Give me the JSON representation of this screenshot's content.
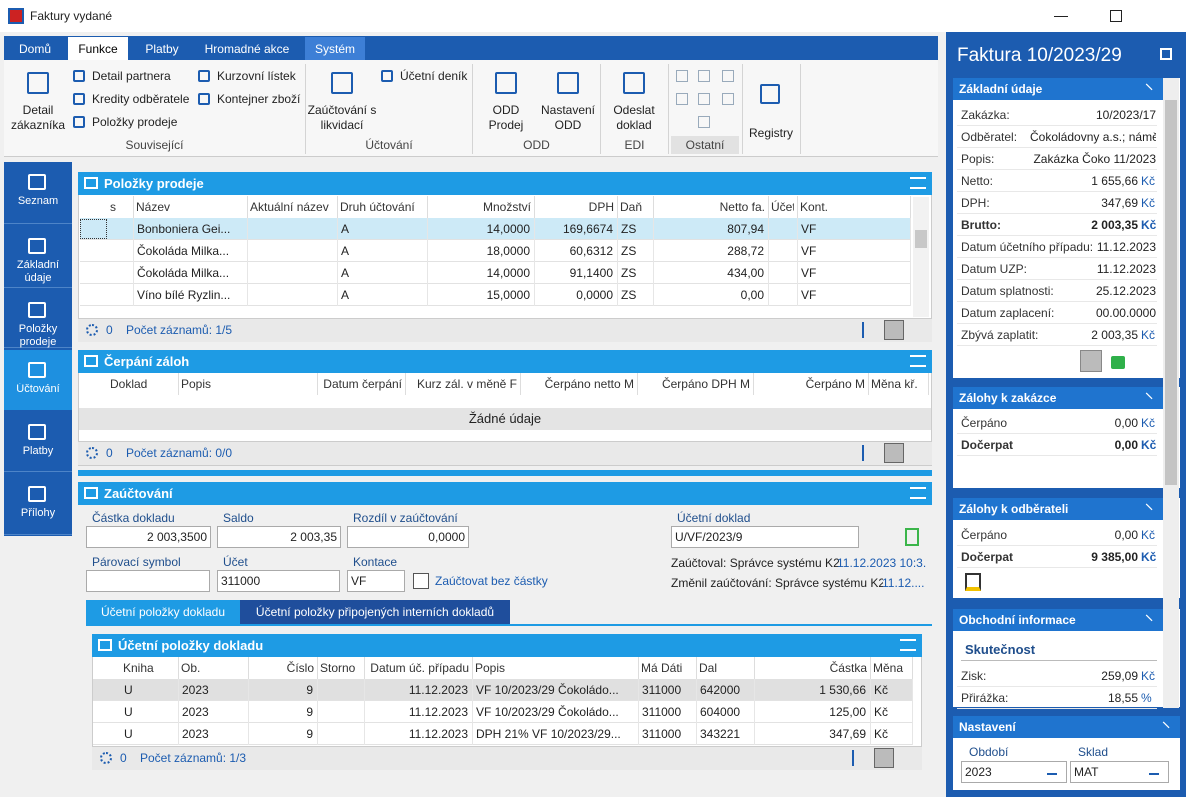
{
  "window": {
    "title": "Faktury vydané"
  },
  "ribbon": {
    "tabs": [
      "Domů",
      "Funkce",
      "Platby",
      "Hromadné akce",
      "Systém"
    ],
    "groups": [
      "Související",
      "Účtování",
      "ODD",
      "EDI",
      "Ostatní"
    ],
    "buttons": [
      "Detail zákazníka",
      "Detail partnera",
      "Kredity odběratele",
      "Položky prodeje",
      "Kurzovní lístek",
      "Kontejner zboží",
      "Zaúčtování s likvidací",
      "Účetní deník",
      "ODD Prodej",
      "Nastavení ODD",
      "Odeslat doklad",
      "Registry"
    ]
  },
  "nav": {
    "items": [
      "Seznam",
      "Základní údaje",
      "Položky prodeje",
      "Účtování",
      "Platby",
      "Přílohy"
    ]
  },
  "polozky": {
    "title": "Položky prodeje",
    "columns": [
      "s",
      "Název",
      "Aktuální název",
      "Druh účtování",
      "Množství",
      "DPH",
      "Daň",
      "Netto fa.",
      "Účet",
      "Kont."
    ],
    "rows": [
      [
        "Bonboniera Gei...",
        "A",
        "14,0000",
        "169,6674",
        "ZS",
        "807,94",
        "VF"
      ],
      [
        "Čokoláda Milka...",
        "A",
        "18,0000",
        "60,6312",
        "ZS",
        "288,72",
        "VF"
      ],
      [
        "Čokoláda Milka...",
        "A",
        "14,0000",
        "91,1400",
        "ZS",
        "434,00",
        "VF"
      ],
      [
        "Víno bílé Ryzlin...",
        "A",
        "15,0000",
        "0,0000",
        "ZS",
        "0,00",
        "VF"
      ]
    ],
    "footer": {
      "count": "0",
      "records": "Počet záznamů: 1/5"
    }
  },
  "cerpani": {
    "title": "Čerpání záloh",
    "columns": [
      "Doklad",
      "Popis",
      "Datum čerpání",
      "Kurz zál. v měně F",
      "Čerpáno netto M",
      "Čerpáno DPH M",
      "Čerpáno M",
      "Měna kř."
    ],
    "empty": "Žádné údaje",
    "footer": {
      "count": "0",
      "records": "Počet záznamů: 0/0"
    }
  },
  "zauctovani": {
    "title": "Zaúčtování",
    "fields": [
      {
        "label": "Částka dokladu",
        "value": "2 003,3500"
      },
      {
        "label": "Saldo",
        "value": "2 003,35"
      },
      {
        "label": "Rozdíl v zaúčtování",
        "value": "0,0000"
      },
      {
        "label": "Účetní doklad",
        "value": "U/VF/2023/9"
      },
      {
        "label": "Párovací symbol"
      },
      {
        "label": "Účet",
        "value": "311000"
      },
      {
        "label": "Kontace",
        "value": "VF"
      }
    ],
    "checkbox": "Zaúčtovat bez částky",
    "posted": {
      "label": "Zaúčtoval: Správce systému K2",
      "date": "11.12.2023 10:3..."
    },
    "changed": {
      "label": "Změnil zaúčtování: Správce systému K2",
      "date": "11.12...."
    },
    "tabs": [
      "Účetní položky dokladu",
      "Účetní položky připojených interních dokladů"
    ],
    "items": {
      "title": "Účetní položky dokladu",
      "columns": [
        "Kniha",
        "Ob.",
        "Číslo",
        "Storno",
        "Datum úč. případu",
        "Popis",
        "Má Dáti",
        "Dal",
        "Částka",
        "Měna"
      ],
      "rows": [
        [
          "U",
          "2023",
          "9",
          "11.12.2023",
          "VF 10/2023/29 Čokoládo...",
          "311000",
          "642000",
          "1 530,66",
          "Kč"
        ],
        [
          "U",
          "2023",
          "9",
          "11.12.2023",
          "VF 10/2023/29 Čokoládo...",
          "311000",
          "604000",
          "125,00",
          "Kč"
        ],
        [
          "U",
          "2023",
          "9",
          "11.12.2023",
          "DPH 21% VF 10/2023/29...",
          "311000",
          "343221",
          "347,69",
          "Kč"
        ]
      ],
      "footer": {
        "count": "0",
        "records": "Počet záznamů: 1/3"
      }
    }
  },
  "detail": {
    "title": "Faktura 10/2023/29",
    "sections": [
      {
        "title": "Základní údaje",
        "rows": [
          [
            "Zakázka:",
            "10/2023/17"
          ],
          [
            "Odběratel:",
            "Čokoládovny a.s.; námě..."
          ],
          [
            "Popis:",
            "Zakázka Čoko 11/2023"
          ],
          [
            "Netto:",
            "1 655,66",
            "Kč"
          ],
          [
            "DPH:",
            "347,69",
            "Kč"
          ],
          [
            "Brutto:",
            "2 003,35",
            "Kč"
          ],
          [
            "Datum účetního případu:",
            "11.12.2023"
          ],
          [
            "Datum UZP:",
            "11.12.2023"
          ],
          [
            "Datum splatnosti:",
            "25.12.2023"
          ],
          [
            "Datum zaplacení:",
            "00.00.0000"
          ],
          [
            "Zbývá zaplatit:",
            "2 003,35",
            "Kč"
          ]
        ]
      },
      {
        "title": "Zálohy k zakázce",
        "rows": [
          [
            "Čerpáno",
            "0,00",
            "Kč"
          ],
          [
            "Dočerpat",
            "0,00",
            "Kč"
          ]
        ]
      },
      {
        "title": "Zálohy k odběrateli",
        "rows": [
          [
            "Čerpáno",
            "0,00",
            "Kč"
          ],
          [
            "Dočerpat",
            "9 385,00",
            "Kč"
          ]
        ]
      },
      {
        "title": "Obchodní informace",
        "subtitle": "Skutečnost",
        "rows": [
          [
            "Zisk:",
            "259,09",
            "Kč"
          ],
          [
            "Přirážka:",
            "18,55",
            "%"
          ]
        ]
      },
      {
        "title": "Nastavení",
        "fields": [
          {
            "label": "Období",
            "value": "2023"
          },
          {
            "label": "Sklad",
            "value": "MAT"
          }
        ]
      }
    ]
  }
}
